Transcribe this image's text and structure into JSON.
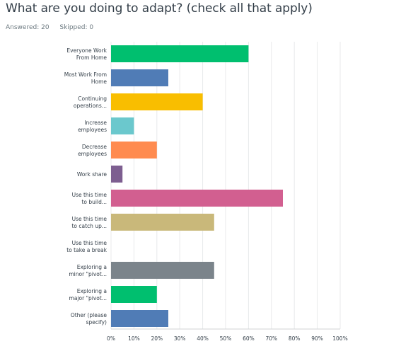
{
  "question": {
    "title": "What are you doing to adapt? (check all that apply)",
    "answered": "Answered: 20",
    "skipped": "Skipped: 0"
  },
  "chart_data": {
    "type": "bar",
    "orientation": "horizontal",
    "categories": [
      [
        "Everyone Work",
        "From Home"
      ],
      [
        "Most Work From",
        "Home"
      ],
      [
        "Continuing",
        "operations..."
      ],
      [
        "Increase",
        "employees"
      ],
      [
        "Decrease",
        "employees"
      ],
      [
        "Work share"
      ],
      [
        "Use this time",
        "to build..."
      ],
      [
        "Use this time",
        "to catch up..."
      ],
      [
        "Use this time",
        "to take a break"
      ],
      [
        "Exploring a",
        "minor \"pivot..."
      ],
      [
        "Exploring a",
        "major \"pivot..."
      ],
      [
        "Other (please",
        "specify)"
      ]
    ],
    "values": [
      60,
      25,
      40,
      10,
      20,
      5,
      75,
      45,
      0,
      45,
      20,
      25
    ],
    "colors": [
      "#00bf6f",
      "#507cb6",
      "#f9be00",
      "#6bc8cd",
      "#ff8b4f",
      "#7d5e90",
      "#d25f90",
      "#c9b87a",
      "#dedede",
      "#7b848b",
      "#00bf6f",
      "#507cb6"
    ],
    "xlim": [
      0,
      100
    ],
    "ticks": [
      0,
      10,
      20,
      30,
      40,
      50,
      60,
      70,
      80,
      90,
      100
    ],
    "tick_labels": [
      "0%",
      "10%",
      "20%",
      "30%",
      "40%",
      "50%",
      "60%",
      "70%",
      "80%",
      "90%",
      "100%"
    ],
    "grid": true,
    "xlabel": "",
    "ylabel": ""
  }
}
